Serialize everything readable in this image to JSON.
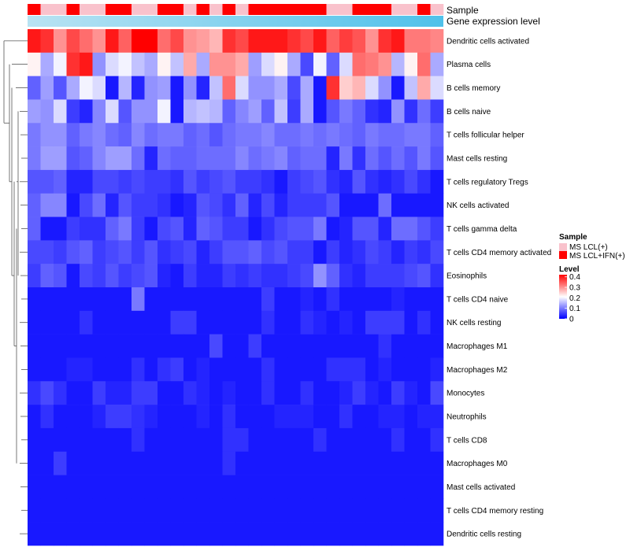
{
  "chart_data": {
    "type": "heatmap",
    "annotations": {
      "sample_label": "Sample",
      "expression_label": "Gene expression level",
      "sample_groups": [
        1,
        0,
        0,
        1,
        0,
        0,
        1,
        1,
        0,
        0,
        1,
        1,
        0,
        1,
        0,
        1,
        0,
        1,
        1,
        1,
        1,
        1,
        1,
        0,
        0,
        1,
        1,
        1,
        0,
        0,
        1,
        0
      ],
      "group_colors": [
        "#f9c2cc",
        "#ff0000"
      ]
    },
    "legend": {
      "sample_title": "Sample",
      "sample_entries": [
        "MS LCL(+)",
        "MS LCL+IFN(+)"
      ],
      "level_title": "Level",
      "level_ticks": [
        "0.4",
        "0.3",
        "0.2",
        "0.1",
        "0"
      ],
      "level_range": [
        0,
        0.42
      ]
    },
    "rows": [
      "Dendritic cells activated",
      "Plasma cells",
      "B cells memory",
      "B cells naive",
      "T cells follicular helper",
      "Mast cells resting",
      "T cells regulatory  Tregs",
      "NK cells activated",
      "T cells gamma delta",
      "T cells CD4 memory activated",
      "Eosinophils",
      "T cells CD4 naive",
      "NK cells resting",
      "Macrophages M1",
      "Macrophages M2",
      "Monocytes",
      "Neutrophils",
      "T cells CD8",
      "Macrophages M0",
      "Mast cells activated",
      "T cells CD4 memory resting",
      "Dendritic cells resting"
    ],
    "values": [
      [
        0.4,
        0.38,
        0.3,
        0.36,
        0.33,
        0.3,
        0.4,
        0.34,
        0.42,
        0.42,
        0.33,
        0.36,
        0.3,
        0.29,
        0.27,
        0.38,
        0.36,
        0.4,
        0.4,
        0.4,
        0.38,
        0.36,
        0.4,
        0.34,
        0.37,
        0.35,
        0.3,
        0.38,
        0.4,
        0.32,
        0.32,
        0.31
      ],
      [
        0.22,
        0.14,
        0.2,
        0.38,
        0.4,
        0.12,
        0.18,
        0.2,
        0.16,
        0.14,
        0.22,
        0.16,
        0.28,
        0.14,
        0.3,
        0.3,
        0.28,
        0.13,
        0.18,
        0.22,
        0.14,
        0.06,
        0.2,
        0.08,
        0.18,
        0.33,
        0.32,
        0.3,
        0.15,
        0.22,
        0.33,
        0.14
      ],
      [
        0.08,
        0.13,
        0.07,
        0.14,
        0.2,
        0.18,
        0.02,
        0.15,
        0.03,
        0.12,
        0.13,
        0.02,
        0.12,
        0.03,
        0.16,
        0.33,
        0.18,
        0.12,
        0.12,
        0.14,
        0.06,
        0.14,
        0.02,
        0.38,
        0.25,
        0.27,
        0.18,
        0.12,
        0.02,
        0.16,
        0.28,
        0.18
      ],
      [
        0.13,
        0.12,
        0.18,
        0.05,
        0.03,
        0.11,
        0.18,
        0.07,
        0.12,
        0.12,
        0.2,
        0.02,
        0.15,
        0.16,
        0.15,
        0.08,
        0.11,
        0.13,
        0.08,
        0.16,
        0.05,
        0.14,
        0.02,
        0.07,
        0.1,
        0.08,
        0.04,
        0.03,
        0.12,
        0.04,
        0.09,
        0.05
      ],
      [
        0.1,
        0.12,
        0.12,
        0.08,
        0.1,
        0.11,
        0.09,
        0.08,
        0.11,
        0.09,
        0.1,
        0.1,
        0.08,
        0.09,
        0.07,
        0.09,
        0.1,
        0.1,
        0.11,
        0.09,
        0.09,
        0.1,
        0.09,
        0.1,
        0.09,
        0.08,
        0.1,
        0.09,
        0.09,
        0.1,
        0.1,
        0.08
      ],
      [
        0.1,
        0.13,
        0.13,
        0.07,
        0.08,
        0.11,
        0.13,
        0.13,
        0.09,
        0.03,
        0.09,
        0.08,
        0.08,
        0.09,
        0.09,
        0.09,
        0.11,
        0.09,
        0.1,
        0.11,
        0.08,
        0.09,
        0.09,
        0.03,
        0.1,
        0.04,
        0.09,
        0.07,
        0.09,
        0.07,
        0.1,
        0.07
      ],
      [
        0.07,
        0.07,
        0.08,
        0.03,
        0.03,
        0.06,
        0.06,
        0.05,
        0.06,
        0.05,
        0.05,
        0.04,
        0.07,
        0.05,
        0.06,
        0.07,
        0.05,
        0.05,
        0.04,
        0.02,
        0.05,
        0.06,
        0.07,
        0.04,
        0.03,
        0.07,
        0.04,
        0.03,
        0.04,
        0.06,
        0.04,
        0.02
      ],
      [
        0.08,
        0.11,
        0.11,
        0.02,
        0.06,
        0.09,
        0.03,
        0.07,
        0.05,
        0.05,
        0.04,
        0.02,
        0.03,
        0.07,
        0.06,
        0.04,
        0.08,
        0.03,
        0.06,
        0.03,
        0.05,
        0.05,
        0.05,
        0.07,
        0.02,
        0.02,
        0.02,
        0.09,
        0.02,
        0.02,
        0.02,
        0.02
      ],
      [
        0.08,
        0.02,
        0.02,
        0.05,
        0.04,
        0.04,
        0.08,
        0.1,
        0.05,
        0.02,
        0.06,
        0.07,
        0.03,
        0.08,
        0.07,
        0.05,
        0.05,
        0.02,
        0.04,
        0.06,
        0.07,
        0.07,
        0.1,
        0.02,
        0.03,
        0.07,
        0.07,
        0.03,
        0.09,
        0.09,
        0.07,
        0.05
      ],
      [
        0.06,
        0.06,
        0.05,
        0.07,
        0.08,
        0.05,
        0.06,
        0.07,
        0.05,
        0.07,
        0.04,
        0.05,
        0.06,
        0.03,
        0.05,
        0.07,
        0.07,
        0.08,
        0.06,
        0.07,
        0.05,
        0.05,
        0.02,
        0.05,
        0.03,
        0.04,
        0.06,
        0.05,
        0.03,
        0.05,
        0.04,
        0.06
      ],
      [
        0.05,
        0.08,
        0.07,
        0.02,
        0.06,
        0.05,
        0.07,
        0.05,
        0.06,
        0.07,
        0.03,
        0.02,
        0.05,
        0.03,
        0.03,
        0.05,
        0.04,
        0.05,
        0.04,
        0.04,
        0.05,
        0.06,
        0.12,
        0.08,
        0.04,
        0.03,
        0.05,
        0.05,
        0.05,
        0.06,
        0.07,
        0.04
      ],
      [
        0.02,
        0.02,
        0.02,
        0.02,
        0.02,
        0.02,
        0.02,
        0.02,
        0.1,
        0.02,
        0.02,
        0.02,
        0.02,
        0.02,
        0.02,
        0.02,
        0.02,
        0.02,
        0.05,
        0.02,
        0.02,
        0.03,
        0.02,
        0.04,
        0.02,
        0.02,
        0.02,
        0.02,
        0.03,
        0.02,
        0.02,
        0.02
      ],
      [
        0.02,
        0.02,
        0.02,
        0.02,
        0.04,
        0.02,
        0.02,
        0.02,
        0.02,
        0.02,
        0.02,
        0.05,
        0.05,
        0.02,
        0.02,
        0.02,
        0.02,
        0.02,
        0.04,
        0.02,
        0.02,
        0.04,
        0.03,
        0.02,
        0.03,
        0.02,
        0.05,
        0.05,
        0.05,
        0.02,
        0.04,
        0.02
      ],
      [
        0.02,
        0.02,
        0.02,
        0.02,
        0.02,
        0.02,
        0.02,
        0.02,
        0.02,
        0.02,
        0.02,
        0.02,
        0.02,
        0.02,
        0.06,
        0.02,
        0.02,
        0.05,
        0.02,
        0.02,
        0.02,
        0.02,
        0.02,
        0.02,
        0.02,
        0.02,
        0.02,
        0.04,
        0.02,
        0.02,
        0.02,
        0.02
      ],
      [
        0.02,
        0.02,
        0.02,
        0.03,
        0.03,
        0.02,
        0.02,
        0.02,
        0.04,
        0.02,
        0.04,
        0.05,
        0.02,
        0.03,
        0.02,
        0.02,
        0.02,
        0.02,
        0.04,
        0.02,
        0.02,
        0.02,
        0.02,
        0.04,
        0.04,
        0.04,
        0.02,
        0.03,
        0.02,
        0.02,
        0.02,
        0.03
      ],
      [
        0.04,
        0.06,
        0.04,
        0.02,
        0.02,
        0.05,
        0.03,
        0.03,
        0.05,
        0.05,
        0.02,
        0.02,
        0.04,
        0.03,
        0.02,
        0.03,
        0.02,
        0.02,
        0.04,
        0.02,
        0.02,
        0.04,
        0.02,
        0.02,
        0.03,
        0.05,
        0.03,
        0.02,
        0.05,
        0.03,
        0.02,
        0.06
      ],
      [
        0.02,
        0.04,
        0.02,
        0.02,
        0.02,
        0.03,
        0.05,
        0.05,
        0.04,
        0.03,
        0.02,
        0.02,
        0.02,
        0.03,
        0.02,
        0.04,
        0.02,
        0.02,
        0.02,
        0.03,
        0.03,
        0.03,
        0.02,
        0.02,
        0.04,
        0.02,
        0.02,
        0.03,
        0.03,
        0.02,
        0.03,
        0.03
      ],
      [
        0.02,
        0.02,
        0.02,
        0.02,
        0.02,
        0.02,
        0.02,
        0.02,
        0.04,
        0.02,
        0.02,
        0.02,
        0.02,
        0.02,
        0.02,
        0.04,
        0.04,
        0.02,
        0.02,
        0.02,
        0.02,
        0.02,
        0.04,
        0.02,
        0.02,
        0.02,
        0.02,
        0.02,
        0.04,
        0.02,
        0.02,
        0.04
      ],
      [
        0.02,
        0.02,
        0.05,
        0.02,
        0.02,
        0.02,
        0.02,
        0.02,
        0.02,
        0.02,
        0.02,
        0.02,
        0.02,
        0.02,
        0.02,
        0.04,
        0.02,
        0.02,
        0.02,
        0.02,
        0.02,
        0.02,
        0.02,
        0.02,
        0.02,
        0.02,
        0.02,
        0.02,
        0.02,
        0.02,
        0.02,
        0.02
      ],
      [
        0.02,
        0.02,
        0.02,
        0.02,
        0.02,
        0.02,
        0.02,
        0.02,
        0.02,
        0.02,
        0.02,
        0.02,
        0.02,
        0.02,
        0.02,
        0.02,
        0.02,
        0.02,
        0.02,
        0.02,
        0.02,
        0.02,
        0.02,
        0.02,
        0.02,
        0.02,
        0.02,
        0.02,
        0.02,
        0.02,
        0.02,
        0.02
      ],
      [
        0.02,
        0.02,
        0.02,
        0.02,
        0.02,
        0.02,
        0.02,
        0.02,
        0.02,
        0.02,
        0.02,
        0.02,
        0.02,
        0.02,
        0.02,
        0.02,
        0.02,
        0.02,
        0.02,
        0.02,
        0.02,
        0.02,
        0.02,
        0.02,
        0.02,
        0.02,
        0.02,
        0.02,
        0.02,
        0.02,
        0.02,
        0.02
      ],
      [
        0.02,
        0.02,
        0.02,
        0.02,
        0.02,
        0.02,
        0.02,
        0.02,
        0.02,
        0.02,
        0.02,
        0.02,
        0.02,
        0.02,
        0.02,
        0.02,
        0.02,
        0.02,
        0.02,
        0.02,
        0.02,
        0.02,
        0.02,
        0.02,
        0.02,
        0.02,
        0.02,
        0.02,
        0.02,
        0.02,
        0.02,
        0.02
      ]
    ],
    "colormap": [
      "#0000ff",
      "#ffffff",
      "#ff0000"
    ]
  }
}
